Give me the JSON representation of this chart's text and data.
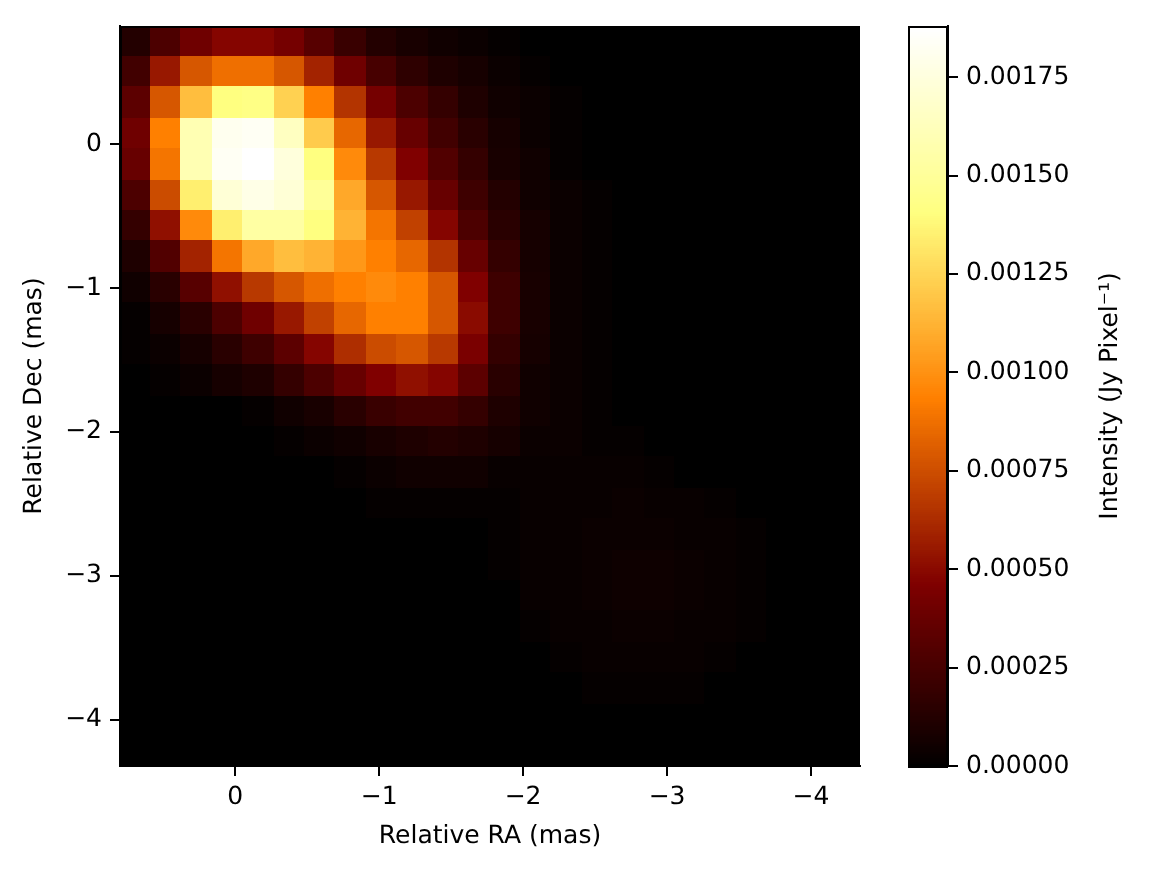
{
  "chart_data": {
    "type": "heatmap",
    "xlabel": "Relative RA (mas)",
    "ylabel": "Relative Dec (mas)",
    "clabel": "Intensity (Jy Pixel⁻¹)",
    "xlim": [
      0.8,
      -4.34
    ],
    "xticks": [
      0,
      {
        "value": -1,
        "label": "−1"
      },
      {
        "value": -2,
        "label": "−2"
      },
      {
        "value": -3,
        "label": "−3"
      },
      {
        "value": -4,
        "label": "−4"
      }
    ],
    "ylim": [
      -4.32,
      0.82
    ],
    "yticks": [
      0,
      {
        "value": -1,
        "label": "−1"
      },
      {
        "value": -2,
        "label": "−2"
      },
      {
        "value": -3,
        "label": "−3"
      },
      {
        "value": -4,
        "label": "−4"
      }
    ],
    "clim": [
      0,
      0.00188
    ],
    "cticks": [
      {
        "value": 0,
        "label": "0.00000"
      },
      0.00025,
      {
        "value": 0.0005,
        "label": "0.00050"
      },
      0.00075,
      {
        "value": 0.001,
        "label": "0.00100"
      },
      0.00125,
      {
        "value": 0.0015,
        "label": "0.00150"
      },
      0.00175
    ],
    "cells": [
      [
        0.00013,
        0.00028,
        0.00041,
        0.00049,
        0.00049,
        0.00043,
        0.00032,
        0.00021,
        0.00013,
        9e-05,
        6e-05,
        4e-05,
        2e-05,
        0,
        0,
        0,
        0,
        0,
        0,
        0,
        0,
        0,
        0,
        0
      ],
      [
        0.00024,
        0.00056,
        0.00079,
        0.00088,
        0.00088,
        0.00079,
        0.0006,
        0.00041,
        0.00026,
        0.00017,
        0.00011,
        8e-05,
        4e-05,
        2e-05,
        0,
        0,
        0,
        0,
        0,
        0,
        0,
        0,
        0,
        0
      ],
      [
        0.00034,
        0.00079,
        0.00117,
        0.00141,
        0.00143,
        0.00124,
        0.00094,
        0.00066,
        0.00043,
        0.00028,
        0.00019,
        0.00011,
        6e-05,
        4e-05,
        2e-05,
        0,
        0,
        0,
        0,
        0,
        0,
        0,
        0,
        0
      ],
      [
        0.00041,
        0.00094,
        0.0016,
        0.00182,
        0.00184,
        0.00165,
        0.00122,
        0.00085,
        0.00056,
        0.00038,
        0.00024,
        0.00015,
        8e-05,
        4e-05,
        2e-05,
        0,
        0,
        0,
        0,
        0,
        0,
        0,
        0,
        0
      ],
      [
        0.00038,
        0.0009,
        0.0016,
        0.00184,
        0.00188,
        0.00175,
        0.00141,
        0.00098,
        0.00068,
        0.00047,
        0.0003,
        0.00019,
        9e-05,
        6e-05,
        2e-05,
        0,
        0,
        0,
        0,
        0,
        0,
        0,
        0,
        0
      ],
      [
        0.00028,
        0.00075,
        0.00135,
        0.00173,
        0.00179,
        0.00173,
        0.0015,
        0.00109,
        0.00079,
        0.00056,
        0.00038,
        0.00023,
        0.00013,
        6e-05,
        4e-05,
        2e-05,
        0,
        0,
        0,
        0,
        0,
        0,
        0,
        0
      ],
      [
        0.00019,
        0.00053,
        0.00098,
        0.00135,
        0.00154,
        0.00154,
        0.00141,
        0.00113,
        0.0009,
        0.00071,
        0.00049,
        0.00028,
        0.00015,
        8e-05,
        4e-05,
        2e-05,
        0,
        0,
        0,
        0,
        0,
        0,
        0,
        0
      ],
      [
        0.00011,
        0.0003,
        0.0006,
        0.0009,
        0.00109,
        0.00117,
        0.00113,
        0.00103,
        0.00094,
        0.00085,
        0.00066,
        0.00038,
        0.00019,
        8e-05,
        4e-05,
        2e-05,
        0,
        0,
        0,
        0,
        0,
        0,
        0,
        0
      ],
      [
        6e-05,
        0.00015,
        0.00032,
        0.00053,
        0.00068,
        0.00079,
        0.00088,
        0.00094,
        0.00098,
        0.00094,
        0.00079,
        0.00047,
        0.00023,
        9e-05,
        4e-05,
        2e-05,
        0,
        0,
        0,
        0,
        0,
        0,
        0,
        0
      ],
      [
        2e-05,
        8e-05,
        0.00015,
        0.00028,
        0.00041,
        0.00056,
        0.00071,
        0.00085,
        0.00094,
        0.00094,
        0.00079,
        0.00051,
        0.00023,
        9e-05,
        4e-05,
        2e-05,
        0,
        0,
        0,
        0,
        0,
        0,
        0,
        0
      ],
      [
        2e-05,
        4e-05,
        8e-05,
        0.00015,
        0.00023,
        0.00034,
        0.00049,
        0.00064,
        0.00075,
        0.00079,
        0.00068,
        0.00045,
        0.00019,
        8e-05,
        4e-05,
        2e-05,
        0,
        0,
        0,
        0,
        0,
        0,
        0,
        0
      ],
      [
        0,
        2e-05,
        4e-05,
        8e-05,
        0.00011,
        0.00019,
        0.00028,
        0.00038,
        0.00047,
        0.00053,
        0.00049,
        0.00034,
        0.00015,
        6e-05,
        4e-05,
        2e-05,
        0,
        0,
        0,
        0,
        0,
        0,
        0,
        0
      ],
      [
        0,
        0,
        0,
        0,
        2e-05,
        6e-05,
        9e-05,
        0.00015,
        0.00021,
        0.00024,
        0.00024,
        0.00019,
        0.00011,
        6e-05,
        4e-05,
        2e-05,
        0,
        0,
        0,
        0,
        0,
        0,
        0,
        0
      ],
      [
        0,
        0,
        0,
        0,
        0,
        2e-05,
        4e-05,
        6e-05,
        9e-05,
        0.00011,
        0.00013,
        0.00011,
        8e-05,
        4e-05,
        4e-05,
        2e-05,
        2e-05,
        0,
        0,
        0,
        0,
        0,
        0,
        0
      ],
      [
        0,
        0,
        0,
        0,
        0,
        0,
        0,
        2e-05,
        4e-05,
        6e-05,
        6e-05,
        6e-05,
        3e-05,
        3e-05,
        3e-05,
        3e-05,
        3e-05,
        2e-05,
        0,
        0,
        0,
        0,
        0,
        0
      ],
      [
        0,
        0,
        0,
        0,
        0,
        0,
        0,
        0,
        2e-05,
        2e-05,
        2e-05,
        2e-05,
        2e-05,
        3e-05,
        3e-05,
        3e-05,
        4e-05,
        3e-05,
        3e-05,
        2e-05,
        0,
        0,
        0,
        0
      ],
      [
        0,
        0,
        0,
        0,
        0,
        0,
        0,
        0,
        0,
        0,
        0,
        0,
        2e-05,
        3e-05,
        3e-05,
        4e-05,
        4e-05,
        4e-05,
        3e-05,
        3e-05,
        2e-05,
        0,
        0,
        0
      ],
      [
        0,
        0,
        0,
        0,
        0,
        0,
        0,
        0,
        0,
        0,
        0,
        0,
        2e-05,
        3e-05,
        3e-05,
        4e-05,
        5e-05,
        5e-05,
        4e-05,
        3e-05,
        2e-05,
        0,
        0,
        0
      ],
      [
        0,
        0,
        0,
        0,
        0,
        0,
        0,
        0,
        0,
        0,
        0,
        0,
        0,
        3e-05,
        3e-05,
        4e-05,
        5e-05,
        5e-05,
        4e-05,
        3e-05,
        2e-05,
        0,
        0,
        0
      ],
      [
        0,
        0,
        0,
        0,
        0,
        0,
        0,
        0,
        0,
        0,
        0,
        0,
        0,
        2e-05,
        3e-05,
        3e-05,
        4e-05,
        4e-05,
        3e-05,
        3e-05,
        2e-05,
        0,
        0,
        0
      ],
      [
        0,
        0,
        0,
        0,
        0,
        0,
        0,
        0,
        0,
        0,
        0,
        0,
        0,
        0,
        2e-05,
        3e-05,
        3e-05,
        3e-05,
        3e-05,
        2e-05,
        0,
        0,
        0,
        0
      ],
      [
        0,
        0,
        0,
        0,
        0,
        0,
        0,
        0,
        0,
        0,
        0,
        0,
        0,
        0,
        0,
        2e-05,
        2e-05,
        2e-05,
        2e-05,
        0,
        0,
        0,
        0,
        0
      ],
      [
        0,
        0,
        0,
        0,
        0,
        0,
        0,
        0,
        0,
        0,
        0,
        0,
        0,
        0,
        0,
        0,
        0,
        0,
        0,
        0,
        0,
        0,
        0,
        0
      ],
      [
        0,
        0,
        0,
        0,
        0,
        0,
        0,
        0,
        0,
        0,
        0,
        0,
        0,
        0,
        0,
        0,
        0,
        0,
        0,
        0,
        0,
        0,
        0,
        0
      ]
    ]
  }
}
